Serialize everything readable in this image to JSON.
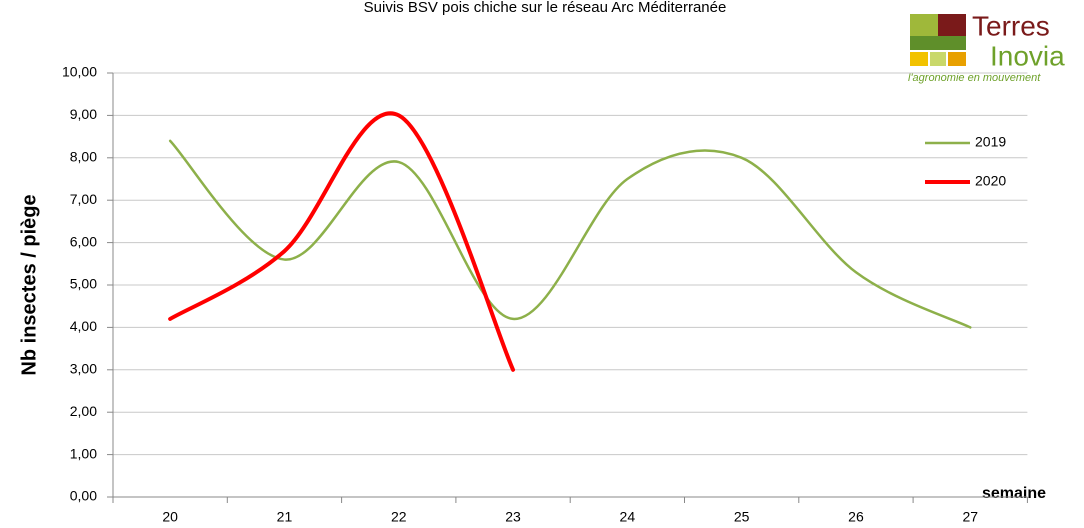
{
  "chart_data": {
    "type": "line",
    "title": "Suivis BSV pois chiche sur le réseau Arc Méditerranée",
    "y_label": "Nb insectes / piège",
    "x_label": "semaine",
    "logo": {
      "line1": "Terres",
      "line2": "Inovia",
      "tagline": "l'agronomie en mouvement"
    },
    "categories": [
      "20",
      "21",
      "22",
      "23",
      "24",
      "25",
      "26",
      "27"
    ],
    "series": [
      {
        "name": "2019",
        "color": "#8db04a",
        "values": [
          8.4,
          5.6,
          7.9,
          4.2,
          7.5,
          8.0,
          5.3,
          4.0
        ]
      },
      {
        "name": "2020",
        "color": "#ff0000",
        "values": [
          4.2,
          5.8,
          9.0,
          3.0,
          null,
          null,
          null,
          null
        ]
      }
    ],
    "ylim": [
      0,
      10
    ],
    "yticks": [
      {
        "value": 0,
        "label": "0,00"
      },
      {
        "value": 1,
        "label": "1,00"
      },
      {
        "value": 2,
        "label": "2,00"
      },
      {
        "value": 3,
        "label": "3,00"
      },
      {
        "value": 4,
        "label": "4,00"
      },
      {
        "value": 5,
        "label": "5,00"
      },
      {
        "value": 6,
        "label": "6,00"
      },
      {
        "value": 7,
        "label": "7,00"
      },
      {
        "value": 8,
        "label": "8,00"
      },
      {
        "value": 9,
        "label": "9,00"
      },
      {
        "value": 10,
        "label": "10,00"
      }
    ],
    "grid": true,
    "smooth": true,
    "legend": "right"
  }
}
